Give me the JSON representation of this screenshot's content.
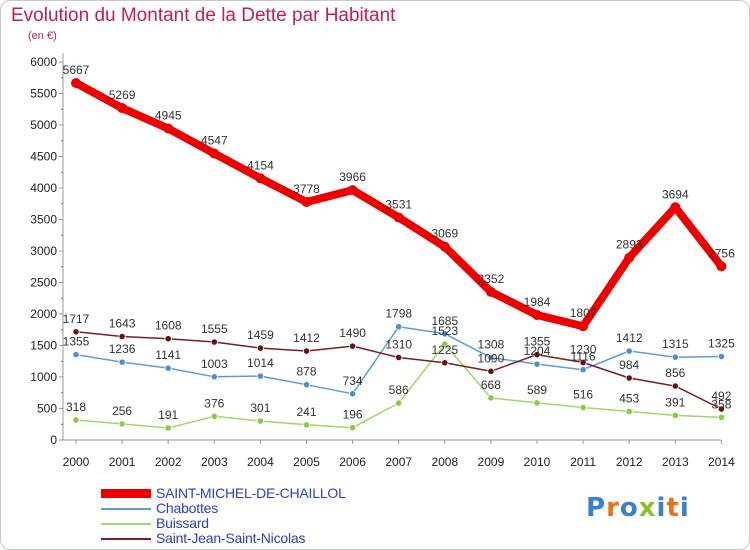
{
  "title": "Evolution du Montant de la Dette par Habitant",
  "unit": "(en €)",
  "logo": "Proxiti",
  "chart_data": {
    "type": "line",
    "x": [
      "2000",
      "2001",
      "2002",
      "2003",
      "2004",
      "2005",
      "2006",
      "2007",
      "2008",
      "2009",
      "2010",
      "2011",
      "2012",
      "2013",
      "2014"
    ],
    "ylim": [
      0,
      6000
    ],
    "yticks": [
      0,
      500,
      1000,
      1500,
      2000,
      2500,
      3000,
      3500,
      4000,
      4500,
      5000,
      5500,
      6000
    ],
    "grid": false,
    "legend_position": "bottom-left",
    "series": [
      {
        "name": "SAINT-MICHEL-DE-CHAILLOL",
        "color": "#ee0000",
        "thick": true,
        "values": [
          5667,
          5269,
          4945,
          4547,
          4154,
          3778,
          3966,
          3531,
          3069,
          2352,
          1984,
          1807,
          2893,
          3694,
          2756
        ],
        "labels": [
          "5667",
          "5269",
          "4945",
          "4547",
          "4154",
          "3778",
          "3966",
          "3531",
          "3069",
          "2352",
          "1984",
          "1807",
          "2893",
          "3694",
          "2756"
        ]
      },
      {
        "name": "Chabottes",
        "color": "#5a9fd4",
        "marker": "#4a90d0",
        "thick": false,
        "values": [
          1355,
          1236,
          1141,
          1003,
          1014,
          878,
          734,
          1798,
          1685,
          1308,
          1204,
          1116,
          1412,
          1315,
          1325
        ],
        "labels": [
          "1355",
          "1236",
          "1141",
          "1003",
          "1014",
          "878",
          "734",
          "1798",
          "1685",
          "1308",
          "1204",
          "1116",
          "1412",
          "1315",
          "1325"
        ]
      },
      {
        "name": "Buissard",
        "color": "#9ed86a",
        "marker": "#88cc44",
        "thick": false,
        "values": [
          318,
          256,
          191,
          376,
          301,
          241,
          196,
          586,
          1523,
          668,
          589,
          516,
          453,
          391,
          358
        ],
        "labels": [
          "318",
          "256",
          "191",
          "376",
          "301",
          "241",
          "196",
          "586",
          "1523",
          "668",
          "589",
          "516",
          "453",
          "391",
          "358"
        ]
      },
      {
        "name": "Saint-Jean-Saint-Nicolas",
        "color": "#7a1f1f",
        "marker": "#6a1010",
        "thick": false,
        "values": [
          1717,
          1643,
          1608,
          1555,
          1459,
          1412,
          1490,
          1310,
          1225,
          1090,
          1355,
          1230,
          984,
          856,
          492
        ],
        "labels": [
          "1717",
          "1643",
          "1608",
          "1555",
          "1459",
          "1412",
          "1490",
          "1310",
          "1225",
          "1090",
          "1355",
          "1230",
          "984",
          "856",
          "492"
        ]
      }
    ]
  }
}
